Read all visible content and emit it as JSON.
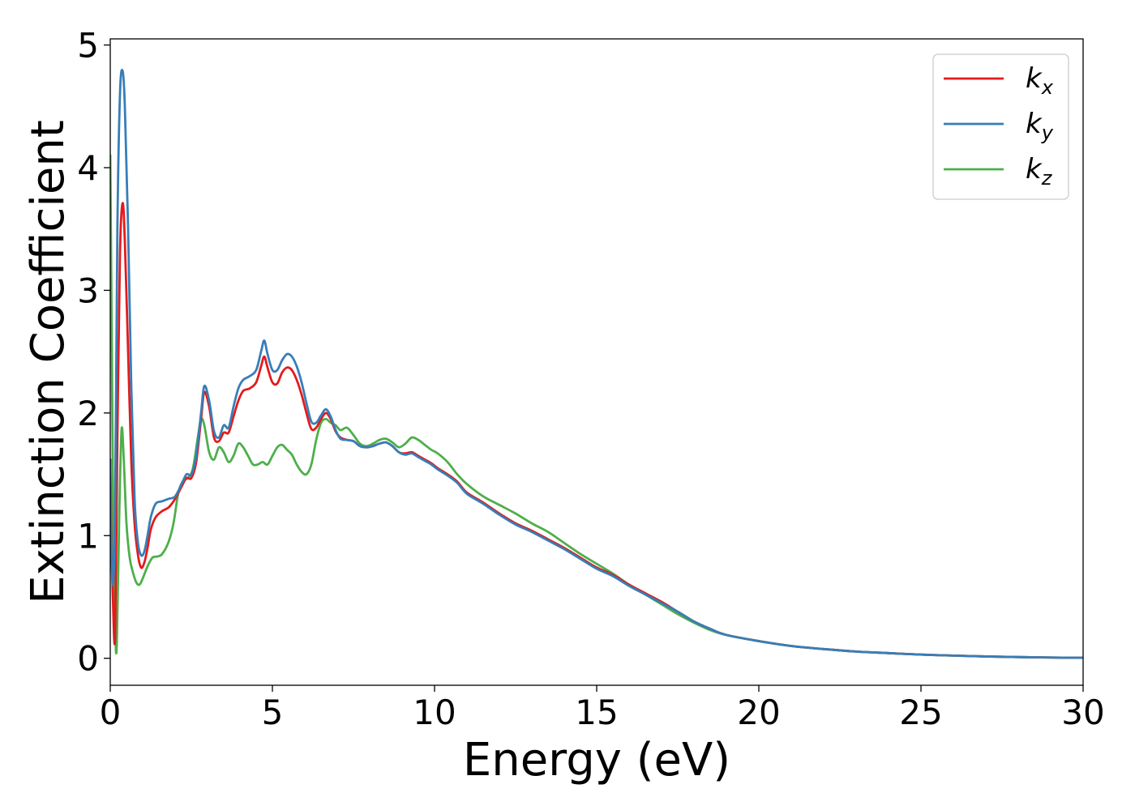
{
  "chart_data": {
    "type": "line",
    "title": "",
    "xlabel": "Energy (eV)",
    "ylabel": "Extinction Coefficient",
    "xlim": [
      0,
      30
    ],
    "ylim": [
      -0.22,
      5.05
    ],
    "xticks": [
      0,
      5,
      10,
      15,
      20,
      25,
      30
    ],
    "yticks": [
      0,
      1,
      2,
      3,
      4,
      5
    ],
    "grid": false,
    "legend_position": "top-right",
    "series": [
      {
        "name": "k",
        "subscript": "x",
        "color": "#e41a1c",
        "x": [
          0.0,
          0.03,
          0.08,
          0.15,
          0.22,
          0.3,
          0.38,
          0.45,
          0.55,
          0.65,
          0.75,
          0.85,
          0.95,
          1.05,
          1.15,
          1.25,
          1.4,
          1.6,
          1.8,
          2.0,
          2.2,
          2.35,
          2.5,
          2.65,
          2.8,
          2.9,
          3.05,
          3.2,
          3.35,
          3.5,
          3.65,
          3.8,
          3.95,
          4.1,
          4.3,
          4.5,
          4.65,
          4.75,
          4.85,
          5.0,
          5.15,
          5.3,
          5.45,
          5.6,
          5.75,
          5.9,
          6.05,
          6.2,
          6.35,
          6.5,
          6.65,
          6.8,
          6.95,
          7.1,
          7.3,
          7.5,
          7.7,
          7.9,
          8.1,
          8.3,
          8.5,
          8.7,
          8.9,
          9.1,
          9.3,
          9.5,
          9.7,
          9.9,
          10.1,
          10.4,
          10.7,
          11.0,
          11.5,
          12.0,
          12.5,
          13.0,
          13.5,
          14.0,
          14.5,
          15.0,
          15.5,
          16.0,
          16.5,
          17.0,
          17.5,
          18.0,
          18.5,
          19.0,
          20.0,
          21.0,
          22.0,
          23.0,
          24.0,
          25.0,
          26.0,
          27.0,
          28.0,
          29.0,
          30.0
        ],
        "values": [
          1.62,
          1.1,
          0.5,
          0.18,
          1.8,
          3.3,
          3.71,
          3.4,
          2.5,
          1.6,
          1.1,
          0.85,
          0.74,
          0.78,
          0.9,
          1.05,
          1.15,
          1.2,
          1.23,
          1.3,
          1.4,
          1.47,
          1.47,
          1.6,
          1.95,
          2.17,
          2.05,
          1.8,
          1.77,
          1.84,
          1.84,
          1.97,
          2.1,
          2.18,
          2.2,
          2.25,
          2.38,
          2.46,
          2.37,
          2.25,
          2.24,
          2.33,
          2.37,
          2.35,
          2.27,
          2.15,
          2.0,
          1.87,
          1.88,
          1.95,
          2.0,
          1.95,
          1.85,
          1.8,
          1.78,
          1.77,
          1.73,
          1.72,
          1.73,
          1.75,
          1.76,
          1.73,
          1.68,
          1.67,
          1.68,
          1.65,
          1.62,
          1.59,
          1.55,
          1.5,
          1.44,
          1.35,
          1.27,
          1.18,
          1.1,
          1.04,
          0.97,
          0.9,
          0.82,
          0.74,
          0.68,
          0.6,
          0.53,
          0.46,
          0.38,
          0.3,
          0.24,
          0.19,
          0.14,
          0.1,
          0.075,
          0.055,
          0.042,
          0.03,
          0.022,
          0.015,
          0.01,
          0.006,
          0.004
        ]
      },
      {
        "name": "k",
        "subscript": "y",
        "color": "#377eb8",
        "x": [
          0.0,
          0.03,
          0.08,
          0.15,
          0.22,
          0.3,
          0.38,
          0.45,
          0.55,
          0.65,
          0.75,
          0.85,
          0.95,
          1.05,
          1.15,
          1.25,
          1.4,
          1.6,
          1.8,
          2.0,
          2.2,
          2.35,
          2.5,
          2.65,
          2.8,
          2.9,
          3.05,
          3.2,
          3.35,
          3.5,
          3.65,
          3.8,
          3.95,
          4.1,
          4.3,
          4.5,
          4.65,
          4.75,
          4.85,
          5.0,
          5.15,
          5.3,
          5.45,
          5.6,
          5.75,
          5.9,
          6.05,
          6.2,
          6.35,
          6.5,
          6.65,
          6.8,
          6.95,
          7.1,
          7.3,
          7.5,
          7.7,
          7.9,
          8.1,
          8.3,
          8.5,
          8.7,
          8.9,
          9.1,
          9.3,
          9.5,
          9.7,
          9.9,
          10.1,
          10.4,
          10.7,
          11.0,
          11.5,
          12.0,
          12.5,
          13.0,
          13.5,
          14.0,
          14.5,
          15.0,
          15.5,
          16.0,
          16.5,
          17.0,
          17.5,
          18.0,
          18.5,
          19.0,
          20.0,
          21.0,
          22.0,
          23.0,
          24.0,
          25.0,
          26.0,
          27.0,
          28.0,
          29.0,
          30.0
        ],
        "values": [
          1.62,
          1.0,
          0.6,
          1.2,
          3.5,
          4.6,
          4.79,
          4.5,
          3.5,
          2.2,
          1.3,
          0.95,
          0.84,
          0.87,
          1.0,
          1.15,
          1.26,
          1.28,
          1.3,
          1.32,
          1.42,
          1.5,
          1.5,
          1.65,
          2.0,
          2.22,
          2.1,
          1.85,
          1.8,
          1.9,
          1.88,
          2.05,
          2.2,
          2.27,
          2.3,
          2.35,
          2.5,
          2.59,
          2.48,
          2.35,
          2.35,
          2.43,
          2.48,
          2.46,
          2.38,
          2.25,
          2.08,
          1.93,
          1.92,
          1.98,
          2.03,
          1.97,
          1.86,
          1.79,
          1.78,
          1.77,
          1.73,
          1.72,
          1.73,
          1.75,
          1.76,
          1.73,
          1.68,
          1.66,
          1.67,
          1.64,
          1.61,
          1.58,
          1.54,
          1.49,
          1.43,
          1.34,
          1.26,
          1.17,
          1.09,
          1.03,
          0.96,
          0.89,
          0.81,
          0.73,
          0.67,
          0.59,
          0.52,
          0.45,
          0.38,
          0.3,
          0.24,
          0.19,
          0.14,
          0.1,
          0.075,
          0.055,
          0.042,
          0.03,
          0.022,
          0.015,
          0.01,
          0.006,
          0.004
        ]
      },
      {
        "name": "k",
        "subscript": "z",
        "color": "#4daf4a",
        "x": [
          0.0,
          0.05,
          0.1,
          0.15,
          0.2,
          0.28,
          0.35,
          0.42,
          0.5,
          0.6,
          0.7,
          0.8,
          0.9,
          1.0,
          1.15,
          1.3,
          1.45,
          1.6,
          1.8,
          1.95,
          2.1,
          2.25,
          2.4,
          2.55,
          2.7,
          2.8,
          2.9,
          3.05,
          3.2,
          3.35,
          3.5,
          3.65,
          3.8,
          3.95,
          4.1,
          4.25,
          4.4,
          4.55,
          4.7,
          4.85,
          5.0,
          5.15,
          5.3,
          5.45,
          5.6,
          5.75,
          5.9,
          6.05,
          6.2,
          6.35,
          6.5,
          6.65,
          6.8,
          6.95,
          7.1,
          7.3,
          7.5,
          7.7,
          7.9,
          8.1,
          8.3,
          8.5,
          8.7,
          8.9,
          9.1,
          9.3,
          9.5,
          9.7,
          9.9,
          10.1,
          10.4,
          10.7,
          11.0,
          11.5,
          12.0,
          12.5,
          13.0,
          13.5,
          14.0,
          14.5,
          15.0,
          15.5,
          16.0,
          16.5,
          17.0,
          17.5,
          18.0,
          18.5,
          19.0,
          20.0,
          21.0,
          22.0,
          23.0,
          24.0,
          25.0,
          26.0,
          27.0,
          28.0,
          29.0,
          30.0
        ],
        "values": [
          4.1,
          2.5,
          0.8,
          0.25,
          0.1,
          1.2,
          1.87,
          1.6,
          1.1,
          0.82,
          0.7,
          0.62,
          0.6,
          0.65,
          0.75,
          0.82,
          0.83,
          0.85,
          0.95,
          1.1,
          1.35,
          1.45,
          1.47,
          1.55,
          1.8,
          1.95,
          1.9,
          1.68,
          1.62,
          1.72,
          1.68,
          1.6,
          1.65,
          1.75,
          1.72,
          1.65,
          1.58,
          1.58,
          1.6,
          1.58,
          1.65,
          1.72,
          1.74,
          1.7,
          1.66,
          1.58,
          1.52,
          1.5,
          1.58,
          1.78,
          1.92,
          1.95,
          1.92,
          1.9,
          1.86,
          1.88,
          1.82,
          1.75,
          1.73,
          1.75,
          1.78,
          1.79,
          1.76,
          1.72,
          1.75,
          1.8,
          1.78,
          1.74,
          1.7,
          1.67,
          1.6,
          1.5,
          1.42,
          1.32,
          1.25,
          1.18,
          1.1,
          1.03,
          0.94,
          0.85,
          0.77,
          0.69,
          0.6,
          0.52,
          0.44,
          0.36,
          0.29,
          0.23,
          0.19,
          0.14,
          0.1,
          0.075,
          0.055,
          0.042,
          0.03,
          0.022,
          0.015,
          0.01,
          0.006,
          0.004
        ]
      }
    ]
  }
}
